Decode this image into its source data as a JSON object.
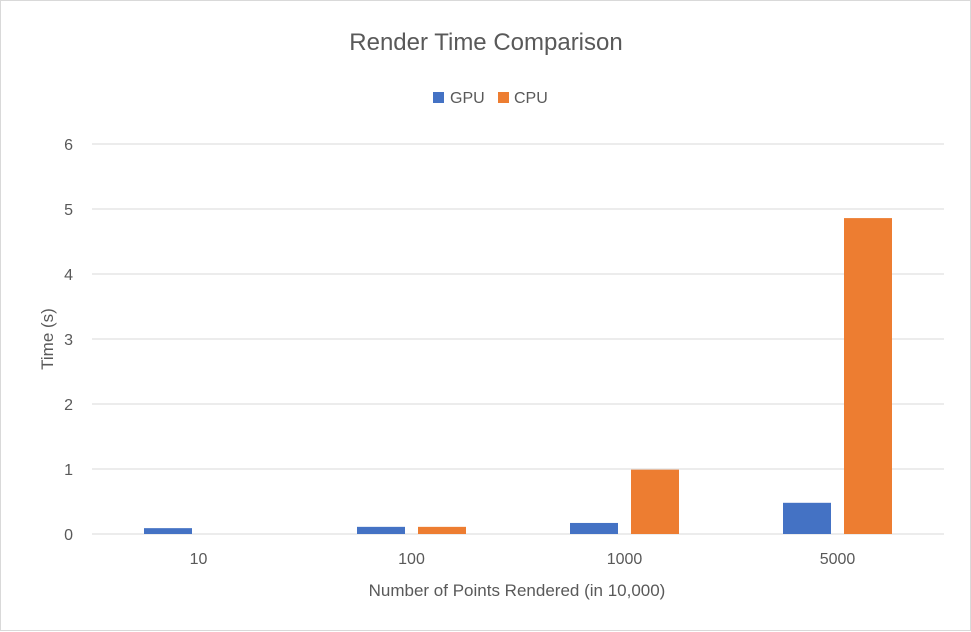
{
  "chart_data": {
    "type": "bar",
    "title": "Render Time Comparison",
    "xlabel": "Number of Points Rendered (in 10,000)",
    "ylabel": "Time (s)",
    "categories": [
      "10",
      "100",
      "1000",
      "5000"
    ],
    "series": [
      {
        "name": "GPU",
        "color": "#4472C4",
        "values": [
          0.09,
          0.11,
          0.17,
          0.48
        ]
      },
      {
        "name": "CPU",
        "color": "#ED7D31",
        "values": [
          0.0,
          0.11,
          0.99,
          4.86
        ]
      }
    ],
    "ylim": [
      0,
      6
    ],
    "yticks": [
      "0",
      "1",
      "2",
      "3",
      "4",
      "5",
      "6"
    ],
    "grid": true,
    "legend_position": "top"
  }
}
